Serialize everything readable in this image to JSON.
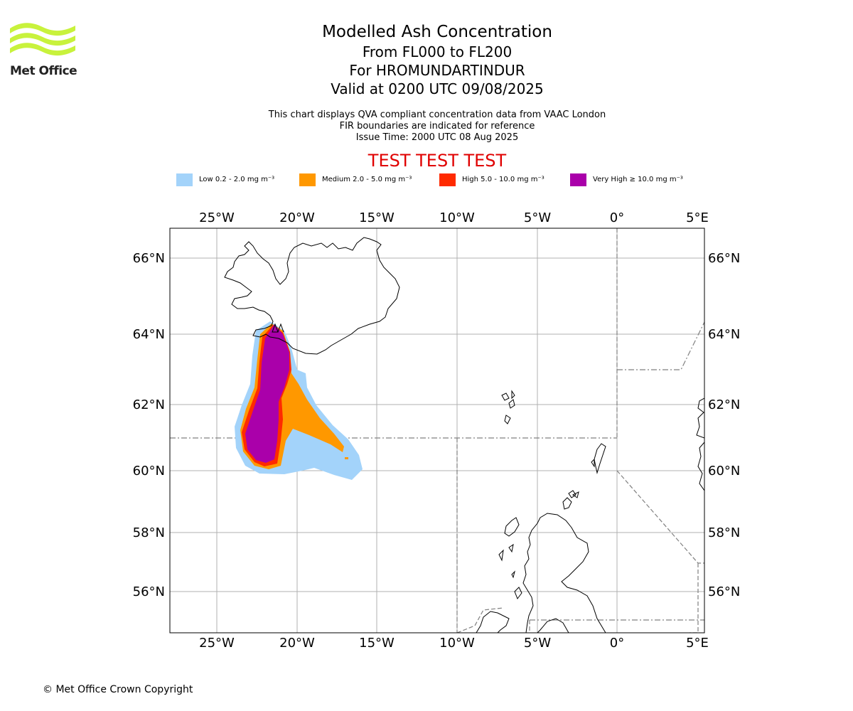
{
  "header": {
    "logo_text": "Met Office",
    "title": "Modelled Ash Concentration",
    "subtitle_levels": "From FL000 to FL200",
    "subtitle_volcano": "For HROMUNDARTINDUR",
    "subtitle_valid": "Valid at 0200 UTC 09/08/2025",
    "description": "This chart displays QVA compliant concentration data from VAAC London",
    "fir_note": "FIR boundaries are indicated for reference",
    "issue_time": "Issue Time: 2000 UTC 08 Aug 2025",
    "test_banner": "TEST TEST TEST"
  },
  "legend": [
    {
      "label": "Low 0.2 - 2.0 mg m⁻³",
      "color": "#a3d3fa"
    },
    {
      "label": "Medium 2.0 - 5.0 mg m⁻³",
      "color": "#ff9800"
    },
    {
      "label": "High 5.0 - 10.0 mg m⁻³",
      "color": "#ff2a00"
    },
    {
      "label": "Very High ≥ 10.0 mg m⁻³",
      "color": "#aa00aa"
    }
  ],
  "axes": {
    "lon_labels": [
      "25°W",
      "20°W",
      "15°W",
      "10°W",
      "5°W",
      "0°",
      "5°E"
    ],
    "lat_labels": [
      "66°N",
      "64°N",
      "62°N",
      "60°N",
      "58°N",
      "56°N"
    ]
  },
  "footer": {
    "copyright": "© Met Office Crown Copyright"
  }
}
